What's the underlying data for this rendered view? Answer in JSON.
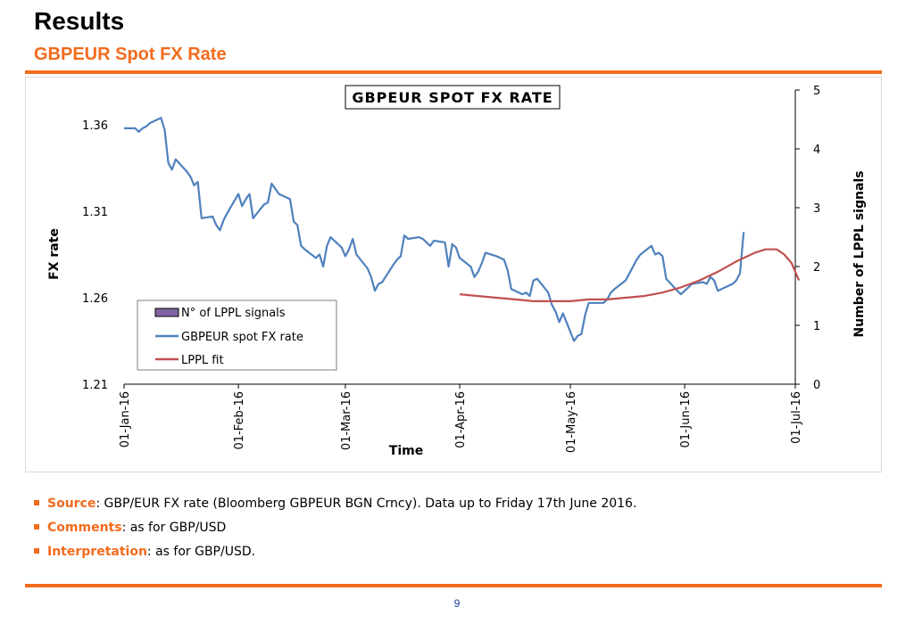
{
  "slide": {
    "title": "Results",
    "subtitle": "GBPEUR Spot FX Rate",
    "page_number": "9",
    "accent_color": "#f26b1d"
  },
  "bullets": [
    {
      "key": "Source",
      "text": ": GBP/EUR FX rate (Bloomberg GBPEUR BGN Crncy). Data up to Friday 17th June 2016."
    },
    {
      "key": "Comments",
      "text": ": as for GBP/USD"
    },
    {
      "key": "Interpretation",
      "text": ": as for GBP/USD."
    }
  ],
  "chart_data": {
    "type": "line",
    "title": "GBPEUR SPOT FX RATE",
    "xlabel": "Time",
    "ylabel": "FX rate",
    "y2label": "Number of LPPL signals",
    "ylim": [
      1.21,
      1.36
    ],
    "yticks": [
      "1.36",
      "1.31",
      "1.26",
      "1.21"
    ],
    "y2lim": [
      0,
      5
    ],
    "y2ticks": [
      "5",
      "4",
      "3",
      "2",
      "1",
      "0"
    ],
    "x_ticks": [
      "01-Jan-16",
      "01-Feb-16",
      "01-Mar-16",
      "01-Apr-16",
      "01-May-16",
      "01-Jun-16",
      "01-Jul-16"
    ],
    "grid": false,
    "legend_position": "bottom-left",
    "legend": [
      "N° of LPPL signals",
      "GBPEUR spot FX rate",
      "LPPL fit"
    ],
    "series": [
      {
        "name": "GBPEUR spot FX rate",
        "color": "#4f81bd",
        "points": [
          [
            "2016-01-01",
            1.358
          ],
          [
            "2016-01-04",
            1.358
          ],
          [
            "2016-01-05",
            1.356
          ],
          [
            "2016-01-06",
            1.358
          ],
          [
            "2016-01-07",
            1.359
          ],
          [
            "2016-01-08",
            1.361
          ],
          [
            "2016-01-11",
            1.364
          ],
          [
            "2016-01-12",
            1.357
          ],
          [
            "2016-01-13",
            1.338
          ],
          [
            "2016-01-14",
            1.334
          ],
          [
            "2016-01-15",
            1.34
          ],
          [
            "2016-01-18",
            1.333
          ],
          [
            "2016-01-19",
            1.33
          ],
          [
            "2016-01-20",
            1.325
          ],
          [
            "2016-01-21",
            1.327
          ],
          [
            "2016-01-22",
            1.306
          ],
          [
            "2016-01-25",
            1.307
          ],
          [
            "2016-01-26",
            1.302
          ],
          [
            "2016-01-27",
            1.299
          ],
          [
            "2016-01-28",
            1.305
          ],
          [
            "2016-01-29",
            1.309
          ],
          [
            "2016-02-01",
            1.32
          ],
          [
            "2016-02-02",
            1.313
          ],
          [
            "2016-02-03",
            1.317
          ],
          [
            "2016-02-04",
            1.32
          ],
          [
            "2016-02-05",
            1.306
          ],
          [
            "2016-02-08",
            1.314
          ],
          [
            "2016-02-09",
            1.315
          ],
          [
            "2016-02-10",
            1.326
          ],
          [
            "2016-02-11",
            1.323
          ],
          [
            "2016-02-12",
            1.32
          ],
          [
            "2016-02-15",
            1.317
          ],
          [
            "2016-02-16",
            1.304
          ],
          [
            "2016-02-17",
            1.302
          ],
          [
            "2016-02-18",
            1.29
          ],
          [
            "2016-02-19",
            1.288
          ],
          [
            "2016-02-22",
            1.283
          ],
          [
            "2016-02-23",
            1.285
          ],
          [
            "2016-02-24",
            1.278
          ],
          [
            "2016-02-25",
            1.29
          ],
          [
            "2016-02-26",
            1.295
          ],
          [
            "2016-02-29",
            1.289
          ],
          [
            "2016-03-01",
            1.284
          ],
          [
            "2016-03-02",
            1.288
          ],
          [
            "2016-03-03",
            1.294
          ],
          [
            "2016-03-04",
            1.285
          ],
          [
            "2016-03-07",
            1.277
          ],
          [
            "2016-03-08",
            1.272
          ],
          [
            "2016-03-09",
            1.264
          ],
          [
            "2016-03-10",
            1.268
          ],
          [
            "2016-03-11",
            1.269
          ],
          [
            "2016-03-14",
            1.279
          ],
          [
            "2016-03-15",
            1.282
          ],
          [
            "2016-03-16",
            1.284
          ],
          [
            "2016-03-17",
            1.296
          ],
          [
            "2016-03-18",
            1.294
          ],
          [
            "2016-03-21",
            1.295
          ],
          [
            "2016-03-22",
            1.294
          ],
          [
            "2016-03-23",
            1.292
          ],
          [
            "2016-03-24",
            1.29
          ],
          [
            "2016-03-25",
            1.293
          ],
          [
            "2016-03-28",
            1.292
          ],
          [
            "2016-03-29",
            1.278
          ],
          [
            "2016-03-30",
            1.291
          ],
          [
            "2016-03-31",
            1.289
          ],
          [
            "2016-04-01",
            1.283
          ],
          [
            "2016-04-04",
            1.278
          ],
          [
            "2016-04-05",
            1.272
          ],
          [
            "2016-04-06",
            1.275
          ],
          [
            "2016-04-07",
            1.28
          ],
          [
            "2016-04-08",
            1.286
          ],
          [
            "2016-04-11",
            1.284
          ],
          [
            "2016-04-12",
            1.283
          ],
          [
            "2016-04-13",
            1.282
          ],
          [
            "2016-04-14",
            1.276
          ],
          [
            "2016-04-15",
            1.265
          ],
          [
            "2016-04-18",
            1.262
          ],
          [
            "2016-04-19",
            1.263
          ],
          [
            "2016-04-20",
            1.261
          ],
          [
            "2016-04-21",
            1.27
          ],
          [
            "2016-04-22",
            1.271
          ],
          [
            "2016-04-25",
            1.263
          ],
          [
            "2016-04-26",
            1.256
          ],
          [
            "2016-04-27",
            1.252
          ],
          [
            "2016-04-28",
            1.246
          ],
          [
            "2016-04-29",
            1.251
          ],
          [
            "2016-05-02",
            1.235
          ],
          [
            "2016-05-03",
            1.238
          ],
          [
            "2016-05-04",
            1.239
          ],
          [
            "2016-05-05",
            1.25
          ],
          [
            "2016-05-06",
            1.257
          ],
          [
            "2016-05-09",
            1.257
          ],
          [
            "2016-05-10",
            1.257
          ],
          [
            "2016-05-11",
            1.259
          ],
          [
            "2016-05-12",
            1.263
          ],
          [
            "2016-05-13",
            1.265
          ],
          [
            "2016-05-16",
            1.27
          ],
          [
            "2016-05-17",
            1.274
          ],
          [
            "2016-05-18",
            1.278
          ],
          [
            "2016-05-19",
            1.282
          ],
          [
            "2016-05-20",
            1.285
          ],
          [
            "2016-05-23",
            1.29
          ],
          [
            "2016-05-24",
            1.285
          ],
          [
            "2016-05-25",
            1.286
          ],
          [
            "2016-05-26",
            1.284
          ],
          [
            "2016-05-27",
            1.271
          ],
          [
            "2016-05-30",
            1.264
          ],
          [
            "2016-05-31",
            1.262
          ],
          [
            "2016-06-01",
            1.264
          ],
          [
            "2016-06-02",
            1.266
          ],
          [
            "2016-06-03",
            1.268
          ],
          [
            "2016-06-06",
            1.269
          ],
          [
            "2016-06-07",
            1.268
          ],
          [
            "2016-06-08",
            1.272
          ],
          [
            "2016-06-09",
            1.27
          ],
          [
            "2016-06-10",
            1.264
          ],
          [
            "2016-06-13",
            1.267
          ],
          [
            "2016-06-14",
            1.268
          ],
          [
            "2016-06-15",
            1.27
          ],
          [
            "2016-06-16",
            1.274
          ],
          [
            "2016-06-17",
            1.298
          ]
        ]
      },
      {
        "name": "LPPL fit",
        "color": "#c0504d",
        "points": [
          [
            "2016-04-01",
            1.262
          ],
          [
            "2016-04-06",
            1.261
          ],
          [
            "2016-04-11",
            1.26
          ],
          [
            "2016-04-16",
            1.259
          ],
          [
            "2016-04-21",
            1.258
          ],
          [
            "2016-04-26",
            1.258
          ],
          [
            "2016-05-01",
            1.258
          ],
          [
            "2016-05-06",
            1.259
          ],
          [
            "2016-05-11",
            1.259
          ],
          [
            "2016-05-16",
            1.26
          ],
          [
            "2016-05-21",
            1.261
          ],
          [
            "2016-05-26",
            1.263
          ],
          [
            "2016-05-31",
            1.266
          ],
          [
            "2016-06-05",
            1.27
          ],
          [
            "2016-06-10",
            1.275
          ],
          [
            "2016-06-15",
            1.281
          ],
          [
            "2016-06-20",
            1.286
          ],
          [
            "2016-06-23",
            1.288
          ],
          [
            "2016-06-26",
            1.288
          ],
          [
            "2016-06-28",
            1.285
          ],
          [
            "2016-06-30",
            1.28
          ],
          [
            "2016-07-02",
            1.27
          ]
        ]
      }
    ]
  }
}
